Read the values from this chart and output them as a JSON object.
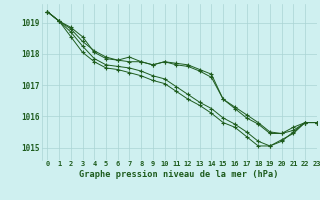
{
  "title": "Graphe pression niveau de la mer (hPa)",
  "background_color": "#cff0f0",
  "grid_color": "#aad4d4",
  "line_color": "#1e5c1e",
  "xlim": [
    -0.5,
    23
  ],
  "ylim": [
    1014.6,
    1019.6
  ],
  "yticks": [
    1015,
    1016,
    1017,
    1018,
    1019
  ],
  "xticks": [
    0,
    1,
    2,
    3,
    4,
    5,
    6,
    7,
    8,
    9,
    10,
    11,
    12,
    13,
    14,
    15,
    16,
    17,
    18,
    19,
    20,
    21,
    22,
    23
  ],
  "series": [
    [
      1019.35,
      1019.05,
      1018.85,
      1018.55,
      1018.05,
      1017.85,
      1017.8,
      1017.75,
      1017.75,
      1017.65,
      1017.75,
      1017.7,
      1017.65,
      1017.5,
      1017.35,
      1016.55,
      1016.3,
      1016.05,
      1015.8,
      1015.5,
      1015.45,
      1015.65,
      1015.8,
      1015.8
    ],
    [
      1019.35,
      1019.05,
      1018.8,
      1018.4,
      1018.1,
      1017.9,
      1017.8,
      1017.9,
      1017.75,
      1017.65,
      1017.75,
      1017.65,
      1017.6,
      1017.45,
      1017.25,
      1016.55,
      1016.25,
      1015.95,
      1015.75,
      1015.45,
      1015.45,
      1015.55,
      1015.8,
      1015.8
    ],
    [
      1019.35,
      1019.05,
      1018.7,
      1018.25,
      1017.85,
      1017.65,
      1017.6,
      1017.55,
      1017.45,
      1017.3,
      1017.2,
      1016.95,
      1016.7,
      1016.45,
      1016.25,
      1015.95,
      1015.75,
      1015.5,
      1015.2,
      1015.05,
      1015.2,
      1015.5,
      1015.8,
      1015.8
    ],
    [
      1019.35,
      1019.05,
      1018.55,
      1018.05,
      1017.75,
      1017.55,
      1017.5,
      1017.4,
      1017.3,
      1017.15,
      1017.05,
      1016.8,
      1016.55,
      1016.35,
      1016.1,
      1015.8,
      1015.65,
      1015.35,
      1015.05,
      1015.05,
      1015.25,
      1015.45,
      1015.8,
      1015.8
    ]
  ]
}
